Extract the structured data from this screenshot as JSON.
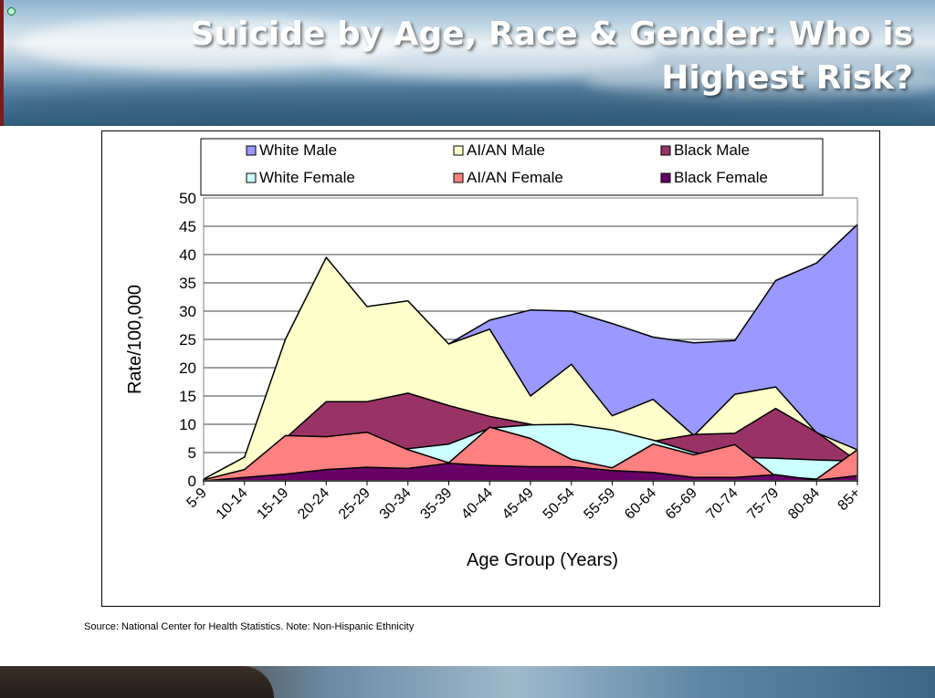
{
  "slide": {
    "title": "Suicide by Age, Race & Gender: Who is Highest Risk?",
    "source_note": "Source: National Center for Health Statistics. Note:  Non-Hispanic Ethnicity"
  },
  "chart_data": {
    "type": "area",
    "title": "",
    "xlabel": "Age Group (Years)",
    "ylabel": "Rate/100,000",
    "ylim": [
      0,
      50
    ],
    "yticks": [
      0,
      5,
      10,
      15,
      20,
      25,
      30,
      35,
      40,
      45,
      50
    ],
    "grid": true,
    "legend": "top",
    "categories": [
      "5-9",
      "10-14",
      "15-19",
      "20-24",
      "25-29",
      "30-34",
      "35-39",
      "40-44",
      "45-49",
      "50-54",
      "55-59",
      "60-64",
      "65-69",
      "70-74",
      "75-79",
      "80-84",
      "85+"
    ],
    "series": [
      {
        "name": "White Male",
        "color": "#9999ff",
        "values": [
          0.3,
          4.2,
          15,
          23,
          21,
          23,
          24.2,
          28.4,
          30.2,
          30,
          27.8,
          25.4,
          24.4,
          24.8,
          35.4,
          38.5,
          45.3
        ]
      },
      {
        "name": "AI/AN Male",
        "color": "#ffffcc",
        "values": [
          0.3,
          4.2,
          25,
          39.5,
          30.8,
          31.8,
          24.2,
          26.8,
          15,
          20.6,
          11.5,
          14.4,
          8,
          15.3,
          16.6,
          8.5,
          5.5
        ]
      },
      {
        "name": "Black Male",
        "color": "#993366",
        "values": [
          0.2,
          1.5,
          7.5,
          14,
          14,
          15.5,
          13.3,
          11.4,
          10,
          8,
          8.5,
          7,
          8.2,
          8.4,
          12.8,
          8.6,
          3.5
        ]
      },
      {
        "name": "White Female",
        "color": "#ccffff",
        "values": [
          0.1,
          1,
          4.5,
          6,
          6.2,
          5.7,
          6.5,
          9.3,
          9.9,
          10,
          9,
          7.2,
          5,
          4.2,
          4,
          3.7,
          3.5
        ]
      },
      {
        "name": "AI/AN Female",
        "color": "#ff8080",
        "values": [
          0.2,
          2,
          8,
          7.8,
          8.6,
          5.5,
          3.2,
          9.5,
          7.5,
          3.8,
          2.3,
          6.5,
          4.6,
          6.4,
          0.8,
          0.3,
          5.5
        ]
      },
      {
        "name": "Black Female",
        "color": "#660066",
        "values": [
          0,
          0.6,
          1.2,
          2,
          2.4,
          2.2,
          3.1,
          2.7,
          2.5,
          2.5,
          1.8,
          1.5,
          0.6,
          0.6,
          1.1,
          0.1,
          0.9
        ]
      }
    ]
  }
}
